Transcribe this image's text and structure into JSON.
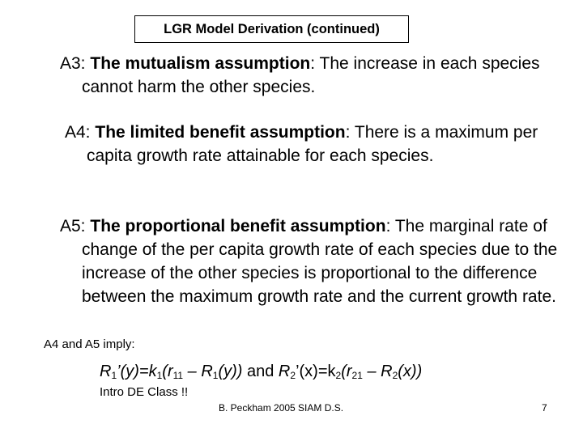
{
  "title": "LGR Model Derivation (continued)",
  "assumptions": [
    {
      "label": "A3:",
      "name": "The mutualism assumption",
      "text": ": The increase in each species cannot harm the other species."
    },
    {
      "label": "A4:",
      "name": "The limited benefit assumption",
      "text": ": There is a maximum per capita growth rate attainable for each species."
    },
    {
      "label": "A5:",
      "name": "The proportional benefit assumption",
      "text": ": The marginal rate of change of the per capita growth rate of each species due to the increase of the other species is proportional to the difference between the maximum growth rate and the current growth rate."
    }
  ],
  "implication": "A4 and A5 imply:",
  "formula": {
    "f1": {
      "R": "R",
      "s1": "1",
      "lhs_rest": "’(y)=k",
      "k": "1",
      "open": "(r",
      "r": "11",
      "minus": " – R",
      "s2": "1",
      "tail": "(y))"
    },
    "and": " and ",
    "f2": {
      "R": "R",
      "s1": "2",
      "lhs_rest": "’(x)=k",
      "k": "2",
      "open": "(r",
      "r": "21",
      "minus": " – R",
      "s2": "2",
      "tail": "(x))"
    }
  },
  "intro": "Intro DE Class !!",
  "footer": "B. Peckham 2005 SIAM D.S.",
  "page_number": "7"
}
